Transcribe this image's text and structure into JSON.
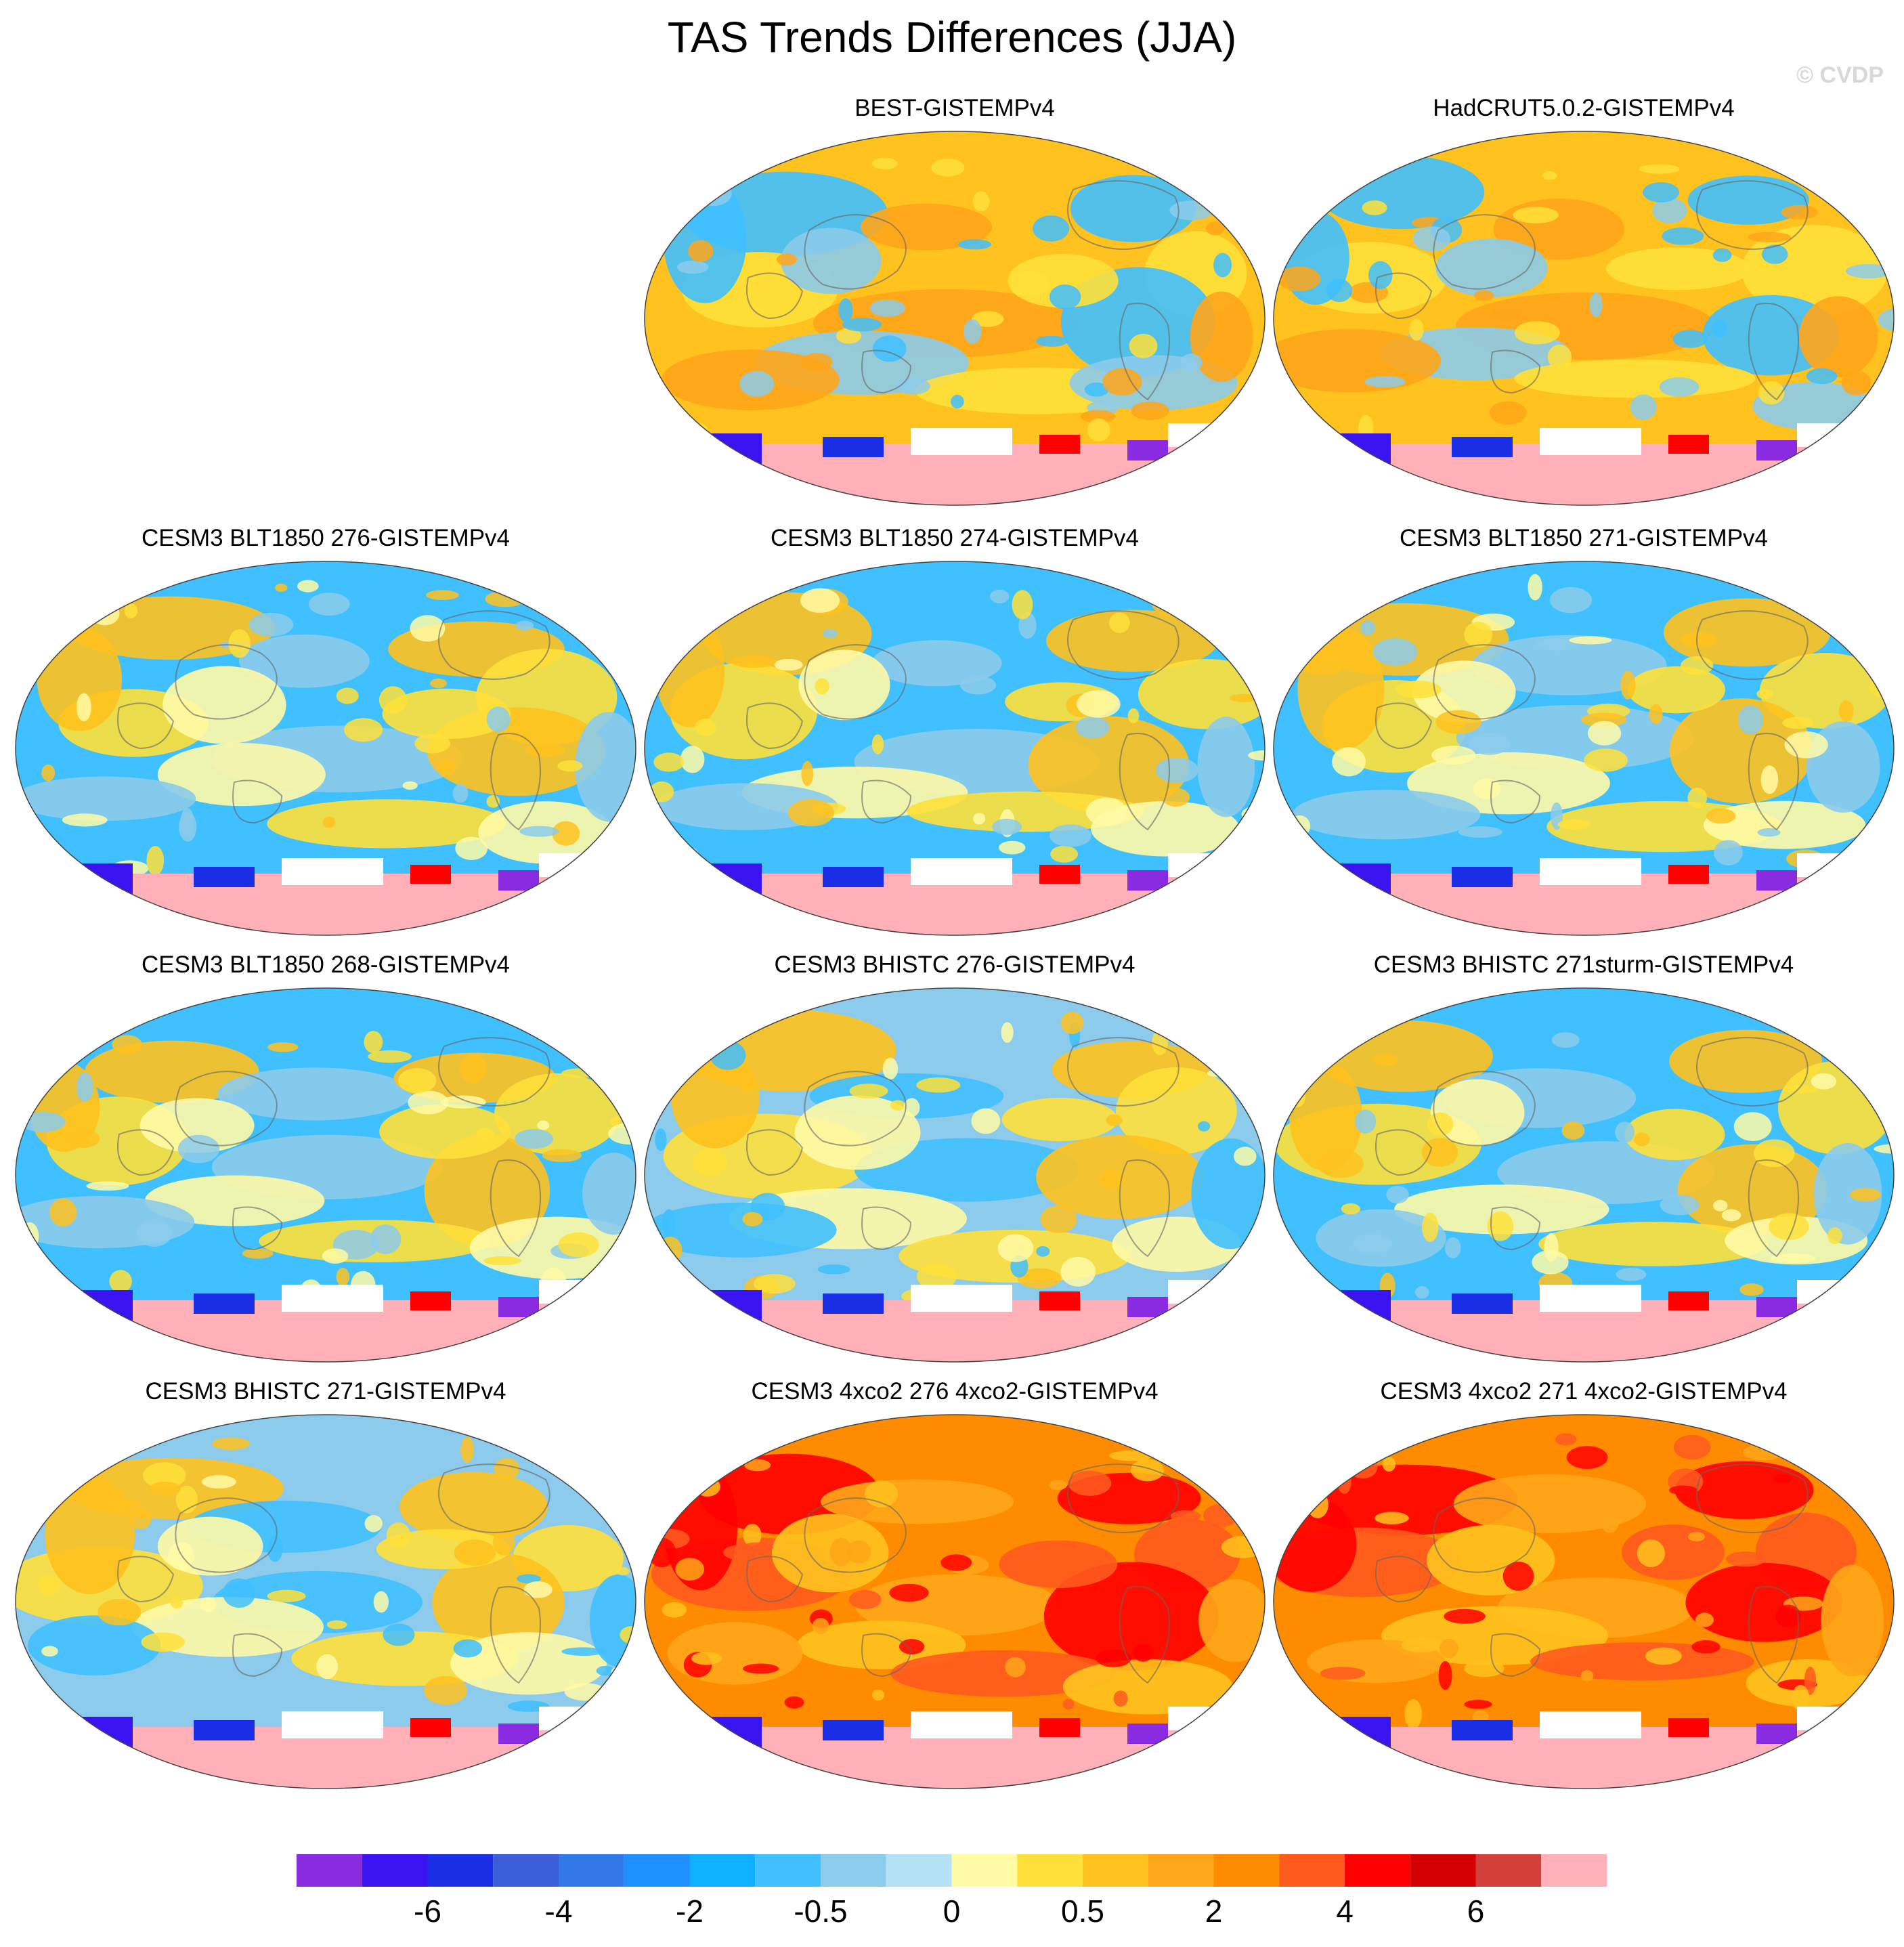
{
  "title": "TAS Trends Differences (JJA)",
  "copyright": "© CVDP",
  "panels": [
    {
      "title": "BEST-GISTEMPv4",
      "theme": "warm"
    },
    {
      "title": "HadCRUT5.0.2-GISTEMPv4",
      "theme": "warm"
    },
    {
      "title": "CESM3 BLT1850 276-GISTEMPv4",
      "theme": "cool"
    },
    {
      "title": "CESM3 BLT1850 274-GISTEMPv4",
      "theme": "cool"
    },
    {
      "title": "CESM3 BLT1850 271-GISTEMPv4",
      "theme": "cool"
    },
    {
      "title": "CESM3 BLT1850 268-GISTEMPv4",
      "theme": "cool"
    },
    {
      "title": "CESM3 BHISTC 276-GISTEMPv4",
      "theme": "mixed"
    },
    {
      "title": "CESM3 BHISTC 271sturm-GISTEMPv4",
      "theme": "cool"
    },
    {
      "title": "CESM3 BHISTC 271-GISTEMPv4",
      "theme": "mixed"
    },
    {
      "title": "CESM3 4xco2 276 4xco2-GISTEMPv4",
      "theme": "hot"
    },
    {
      "title": "CESM3 4xco2 271 4xco2-GISTEMPv4",
      "theme": "hot"
    }
  ],
  "colorbar": {
    "colors": [
      "#8a2be2",
      "#3a14f0",
      "#1a2ee6",
      "#3a5fd8",
      "#3278e6",
      "#1e90ff",
      "#0fb0ff",
      "#40c0ff",
      "#8ccbeb",
      "#b5e1f7",
      "#fffaa6",
      "#ffe03a",
      "#ffc21e",
      "#ffa619",
      "#ff8c00",
      "#ff5a1e",
      "#ff0000",
      "#d20000",
      "#d2403c",
      "#ffb0b8"
    ],
    "labels": [
      "-6",
      "-4",
      "-2",
      "-0.5",
      "0",
      "0.5",
      "2",
      "4",
      "6"
    ]
  }
}
